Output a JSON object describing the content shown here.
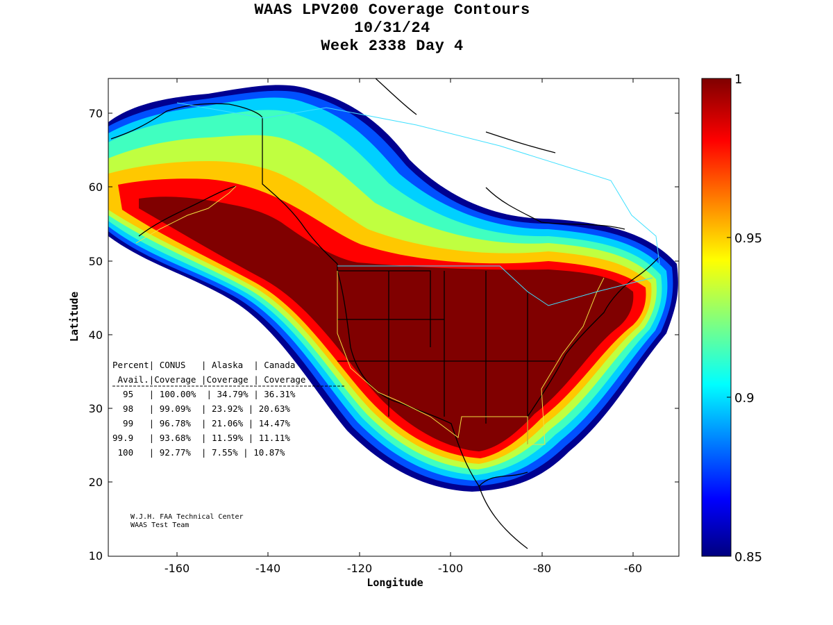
{
  "title": {
    "line1": "WAAS LPV200 Coverage Contours",
    "line2": "10/31/24",
    "line3": "Week 2338 Day 4"
  },
  "axes": {
    "xlabel": "Longitude",
    "ylabel": "Latitude",
    "xticks": [
      "-160",
      "-140",
      "-120",
      "-100",
      "-80",
      "-60"
    ],
    "yticks": [
      "70",
      "60",
      "50",
      "40",
      "30",
      "20",
      "10"
    ]
  },
  "colorbar": {
    "ticks": [
      "1",
      "0.95",
      "0.9",
      "0.85"
    ],
    "colors": [
      "#000080",
      "#0000ff",
      "#0080ff",
      "#00ffff",
      "#80ff80",
      "#ffff00",
      "#ff8000",
      "#ff0000",
      "#800000"
    ]
  },
  "stats_table": {
    "header1": "Percent| CONUS   | Alaska  | Canada",
    "header2": " Avail.|Coverage |Coverage | Coverage",
    "rows": [
      "  95   | 100.00%  | 34.79% | 36.31%",
      "  98   | 99.09%  | 23.92% | 20.63%",
      "  99   | 96.78%  | 21.06% | 14.47%",
      "99.9   | 93.68%  | 11.59% | 11.11%",
      " 100   | 92.77%  | 7.55% | 10.87%"
    ]
  },
  "credit": {
    "line1": "W.J.H. FAA Technical Center",
    "line2": "WAAS Test Team"
  },
  "chart_data": {
    "type": "heatmap",
    "title": "WAAS LPV200 Coverage Contours",
    "xlabel": "Longitude",
    "ylabel": "Latitude",
    "xlim": [
      -175,
      -50
    ],
    "ylim": [
      10,
      75
    ],
    "color_range": [
      0.85,
      1
    ],
    "colormap": "jet",
    "coverage_table": {
      "columns": [
        "Percent Avail.",
        "CONUS Coverage",
        "Alaska Coverage",
        "Canada Coverage"
      ],
      "rows": [
        [
          "95",
          "100.00%",
          "34.79%",
          "36.31%"
        ],
        [
          "98",
          "99.09%",
          "23.92%",
          "20.63%"
        ],
        [
          "99",
          "96.78%",
          "21.06%",
          "14.47%"
        ],
        [
          "99.9",
          "93.68%",
          "11.59%",
          "11.11%"
        ],
        [
          "100",
          "92.77%",
          "7.55%",
          "10.87%"
        ]
      ]
    }
  }
}
